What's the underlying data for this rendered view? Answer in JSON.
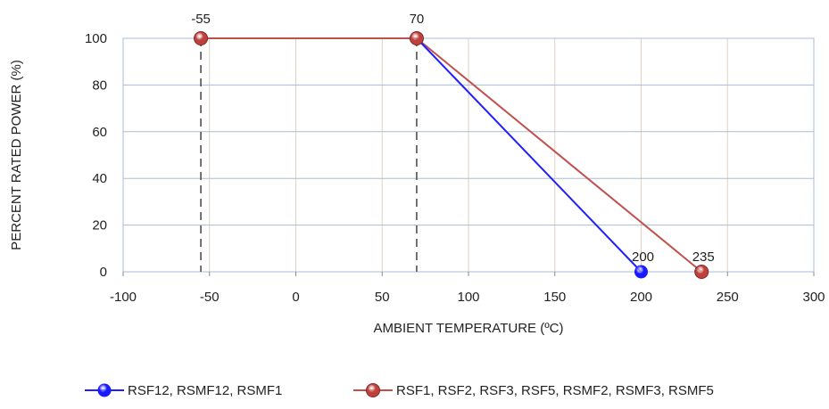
{
  "chart_data": {
    "type": "line",
    "title": "",
    "xlabel": "AMBIENT TEMPERATURE (ºC)",
    "ylabel": "PERCENT RATED POWER (%)",
    "xlim": [
      -100,
      300
    ],
    "ylim": [
      0,
      100
    ],
    "x_ticks": [
      -100,
      -50,
      0,
      50,
      100,
      150,
      200,
      250,
      300
    ],
    "y_ticks": [
      0,
      20,
      40,
      60,
      80,
      100
    ],
    "grid": true,
    "legend_position": "bottom",
    "series": [
      {
        "name": "RSF12, RSMF12, RSMF1",
        "color": "#1f1fff",
        "marker_color": "#1a1aff",
        "points": [
          {
            "x": 70,
            "y": 100
          },
          {
            "x": 200,
            "y": 0
          }
        ]
      },
      {
        "name": "RSF1, RSF2, RSF3, RSF5, RSMF2, RSMF3, RSMF5",
        "color": "#c0504d",
        "marker_color": "#c0403c",
        "points": [
          {
            "x": -55,
            "y": 100
          },
          {
            "x": 70,
            "y": 100
          },
          {
            "x": 235,
            "y": 0
          }
        ]
      }
    ],
    "annotations": [
      {
        "text": "-55",
        "x": -55,
        "y": 100
      },
      {
        "text": "70",
        "x": 70,
        "y": 100
      },
      {
        "text": "200",
        "x": 200,
        "y": 0
      },
      {
        "text": "235",
        "x": 235,
        "y": 0
      }
    ],
    "dashed_drop_lines": [
      -55,
      70
    ]
  }
}
